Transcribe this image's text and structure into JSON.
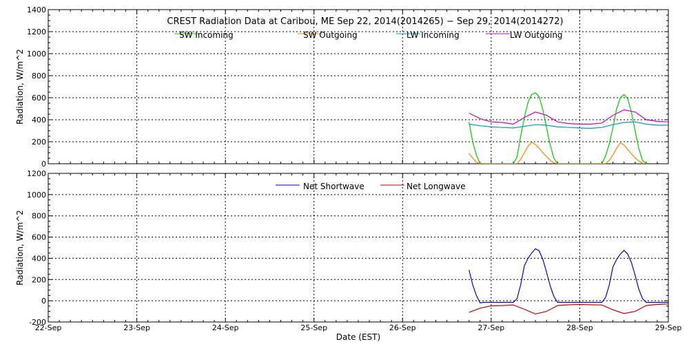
{
  "chart_data": [
    {
      "type": "line",
      "title": "CREST Radiation Data at Caribou, ME   Sep 22, 2014(2014265) − Sep 29, 2014(2014272)",
      "ylabel": "Radiation, W/m^2",
      "xlabel": "",
      "ylim": [
        0,
        1400
      ],
      "yticks": [
        0,
        200,
        400,
        600,
        800,
        1000,
        1200,
        1400
      ],
      "xlim": [
        "2014-09-22",
        "2014-09-29"
      ],
      "grid": true,
      "legend_position": "top",
      "series": [
        {
          "name": "SW Incoming",
          "color": "#00cc00",
          "points": [
            [
              "2014-09-26T18:00",
              380
            ],
            [
              "2014-09-26T19:00",
              200
            ],
            [
              "2014-09-26T20:00",
              80
            ],
            [
              "2014-09-26T21:00",
              0
            ],
            [
              "2014-09-27T06:00",
              0
            ],
            [
              "2014-09-27T07:00",
              60
            ],
            [
              "2014-09-27T08:00",
              250
            ],
            [
              "2014-09-27T09:00",
              420
            ],
            [
              "2014-09-27T10:00",
              560
            ],
            [
              "2014-09-27T11:00",
              630
            ],
            [
              "2014-09-27T12:00",
              645
            ],
            [
              "2014-09-27T13:00",
              610
            ],
            [
              "2014-09-27T14:00",
              490
            ],
            [
              "2014-09-27T15:00",
              330
            ],
            [
              "2014-09-27T16:00",
              170
            ],
            [
              "2014-09-27T17:00",
              50
            ],
            [
              "2014-09-27T18:00",
              0
            ],
            [
              "2014-09-28T06:00",
              0
            ],
            [
              "2014-09-28T07:00",
              70
            ],
            [
              "2014-09-28T08:00",
              180
            ],
            [
              "2014-09-28T09:00",
              330
            ],
            [
              "2014-09-28T10:00",
              500
            ],
            [
              "2014-09-28T11:00",
              600
            ],
            [
              "2014-09-28T12:00",
              628
            ],
            [
              "2014-09-28T13:00",
              590
            ],
            [
              "2014-09-28T14:00",
              470
            ],
            [
              "2014-09-28T15:00",
              300
            ],
            [
              "2014-09-28T16:00",
              140
            ],
            [
              "2014-09-28T17:00",
              30
            ],
            [
              "2014-09-28T18:00",
              0
            ]
          ]
        },
        {
          "name": "SW Outgoing",
          "color": "#ff8000",
          "points": [
            [
              "2014-09-26T18:00",
              95
            ],
            [
              "2014-09-26T19:00",
              50
            ],
            [
              "2014-09-26T20:00",
              15
            ],
            [
              "2014-09-26T21:00",
              0
            ],
            [
              "2014-09-27T07:00",
              0
            ],
            [
              "2014-09-27T08:00",
              40
            ],
            [
              "2014-09-27T09:00",
              100
            ],
            [
              "2014-09-27T10:00",
              160
            ],
            [
              "2014-09-27T11:00",
              195
            ],
            [
              "2014-09-27T12:00",
              175
            ],
            [
              "2014-09-27T13:00",
              140
            ],
            [
              "2014-09-27T14:00",
              100
            ],
            [
              "2014-09-27T15:00",
              65
            ],
            [
              "2014-09-27T16:00",
              30
            ],
            [
              "2014-09-27T17:00",
              8
            ],
            [
              "2014-09-27T18:00",
              0
            ],
            [
              "2014-09-28T07:00",
              0
            ],
            [
              "2014-09-28T08:00",
              30
            ],
            [
              "2014-09-28T09:00",
              80
            ],
            [
              "2014-09-28T10:00",
              140
            ],
            [
              "2014-09-28T11:00",
              190
            ],
            [
              "2014-09-28T12:00",
              170
            ],
            [
              "2014-09-28T13:00",
              130
            ],
            [
              "2014-09-28T14:00",
              90
            ],
            [
              "2014-09-28T15:00",
              55
            ],
            [
              "2014-09-28T16:00",
              25
            ],
            [
              "2014-09-28T17:00",
              5
            ],
            [
              "2014-09-28T18:00",
              0
            ]
          ]
        },
        {
          "name": "LW Incoming",
          "color": "#0099cc",
          "points": [
            [
              "2014-09-26T18:00",
              360
            ],
            [
              "2014-09-26T21:00",
              345
            ],
            [
              "2014-09-27T00:00",
              335
            ],
            [
              "2014-09-27T03:00",
              330
            ],
            [
              "2014-09-27T06:00",
              325
            ],
            [
              "2014-09-27T09:00",
              340
            ],
            [
              "2014-09-27T12:00",
              355
            ],
            [
              "2014-09-27T15:00",
              350
            ],
            [
              "2014-09-27T18:00",
              335
            ],
            [
              "2014-09-27T21:00",
              330
            ],
            [
              "2014-09-28T00:00",
              325
            ],
            [
              "2014-09-28T03:00",
              322
            ],
            [
              "2014-09-28T06:00",
              330
            ],
            [
              "2014-09-28T09:00",
              355
            ],
            [
              "2014-09-28T12:00",
              375
            ],
            [
              "2014-09-28T15:00",
              380
            ],
            [
              "2014-09-28T18:00",
              360
            ],
            [
              "2014-09-28T21:00",
              350
            ],
            [
              "2014-09-29T00:00",
              350
            ]
          ]
        },
        {
          "name": "LW Outgoing",
          "color": "#cc00cc",
          "points": [
            [
              "2014-09-26T18:00",
              460
            ],
            [
              "2014-09-26T21:00",
              410
            ],
            [
              "2014-09-27T00:00",
              380
            ],
            [
              "2014-09-27T03:00",
              375
            ],
            [
              "2014-09-27T06:00",
              360
            ],
            [
              "2014-09-27T09:00",
              420
            ],
            [
              "2014-09-27T12:00",
              470
            ],
            [
              "2014-09-27T15:00",
              440
            ],
            [
              "2014-09-27T18:00",
              380
            ],
            [
              "2014-09-27T21:00",
              365
            ],
            [
              "2014-09-28T00:00",
              360
            ],
            [
              "2014-09-28T03:00",
              360
            ],
            [
              "2014-09-28T06:00",
              370
            ],
            [
              "2014-09-28T09:00",
              440
            ],
            [
              "2014-09-28T12:00",
              490
            ],
            [
              "2014-09-28T15:00",
              470
            ],
            [
              "2014-09-28T18:00",
              400
            ],
            [
              "2014-09-28T21:00",
              385
            ],
            [
              "2014-09-29T00:00",
              380
            ]
          ]
        }
      ]
    },
    {
      "type": "line",
      "title": "",
      "ylabel": "Radiation, W/m^2",
      "xlabel": "Date (EST)",
      "ylim": [
        -200,
        1200
      ],
      "yticks": [
        -200,
        0,
        200,
        400,
        600,
        800,
        1000,
        1200
      ],
      "xlim": [
        "2014-09-22",
        "2014-09-29"
      ],
      "xticks": [
        "22-Sep",
        "23-Sep",
        "24-Sep",
        "25-Sep",
        "26-Sep",
        "27-Sep",
        "28-Sep",
        "29-Sep"
      ],
      "grid": true,
      "legend_position": "top",
      "series": [
        {
          "name": "Net Shortwave",
          "color": "#0000cc",
          "points": [
            [
              "2014-09-26T18:00",
              290
            ],
            [
              "2014-09-26T19:00",
              150
            ],
            [
              "2014-09-26T20:00",
              50
            ],
            [
              "2014-09-26T21:00",
              -20
            ],
            [
              "2014-09-26T22:00",
              -15
            ],
            [
              "2014-09-27T06:00",
              -15
            ],
            [
              "2014-09-27T07:00",
              20
            ],
            [
              "2014-09-27T08:00",
              150
            ],
            [
              "2014-09-27T09:00",
              330
            ],
            [
              "2014-09-27T10:00",
              400
            ],
            [
              "2014-09-27T11:00",
              450
            ],
            [
              "2014-09-27T12:00",
              490
            ],
            [
              "2014-09-27T13:00",
              470
            ],
            [
              "2014-09-27T14:00",
              390
            ],
            [
              "2014-09-27T15:00",
              270
            ],
            [
              "2014-09-27T16:00",
              140
            ],
            [
              "2014-09-27T17:00",
              40
            ],
            [
              "2014-09-27T18:00",
              -15
            ],
            [
              "2014-09-28T06:00",
              -15
            ],
            [
              "2014-09-28T07:00",
              30
            ],
            [
              "2014-09-28T08:00",
              150
            ],
            [
              "2014-09-28T09:00",
              320
            ],
            [
              "2014-09-28T10:00",
              390
            ],
            [
              "2014-09-28T11:00",
              440
            ],
            [
              "2014-09-28T12:00",
              475
            ],
            [
              "2014-09-28T13:00",
              440
            ],
            [
              "2014-09-28T14:00",
              360
            ],
            [
              "2014-09-28T15:00",
              240
            ],
            [
              "2014-09-28T16:00",
              110
            ],
            [
              "2014-09-28T17:00",
              20
            ],
            [
              "2014-09-28T18:00",
              -15
            ],
            [
              "2014-09-29T00:00",
              -15
            ]
          ]
        },
        {
          "name": "Net Longwave",
          "color": "#cc0000",
          "points": [
            [
              "2014-09-26T18:00",
              -110
            ],
            [
              "2014-09-26T21:00",
              -70
            ],
            [
              "2014-09-27T00:00",
              -48
            ],
            [
              "2014-09-27T03:00",
              -45
            ],
            [
              "2014-09-27T06:00",
              -40
            ],
            [
              "2014-09-27T09:00",
              -80
            ],
            [
              "2014-09-27T12:00",
              -125
            ],
            [
              "2014-09-27T15:00",
              -100
            ],
            [
              "2014-09-27T18:00",
              -45
            ],
            [
              "2014-09-27T21:00",
              -38
            ],
            [
              "2014-09-28T00:00",
              -35
            ],
            [
              "2014-09-28T03:00",
              -38
            ],
            [
              "2014-09-28T06:00",
              -40
            ],
            [
              "2014-09-28T09:00",
              -85
            ],
            [
              "2014-09-28T12:00",
              -120
            ],
            [
              "2014-09-28T15:00",
              -100
            ],
            [
              "2014-09-28T18:00",
              -45
            ],
            [
              "2014-09-28T21:00",
              -35
            ],
            [
              "2014-09-29T00:00",
              -30
            ]
          ]
        }
      ]
    }
  ]
}
